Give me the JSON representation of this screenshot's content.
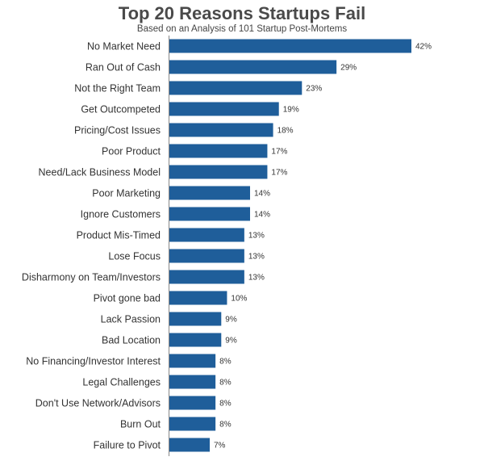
{
  "chart_data": {
    "type": "bar",
    "orientation": "horizontal",
    "title": "Top 20 Reasons Startups Fail",
    "subtitle": "Based on an Analysis of 101 Startup Post-Mortems",
    "categories": [
      "No Market Need",
      "Ran Out of Cash",
      "Not the Right Team",
      "Get Outcompeted",
      "Pricing/Cost Issues",
      "Poor Product",
      "Need/Lack Business Model",
      "Poor Marketing",
      "Ignore Customers",
      "Product Mis-Timed",
      "Lose Focus",
      "Disharmony on Team/Investors",
      "Pivot gone bad",
      "Lack Passion",
      "Bad Location",
      "No Financing/Investor Interest",
      "Legal Challenges",
      "Don't Use Network/Advisors",
      "Burn Out",
      "Failure to Pivot"
    ],
    "values": [
      42,
      29,
      23,
      19,
      18,
      17,
      17,
      14,
      14,
      13,
      13,
      13,
      10,
      9,
      9,
      8,
      8,
      8,
      8,
      7
    ],
    "value_suffix": "%",
    "bar_color": "#1f5e9a",
    "xlim": [
      0,
      42
    ],
    "grid": false,
    "legend": "none"
  }
}
